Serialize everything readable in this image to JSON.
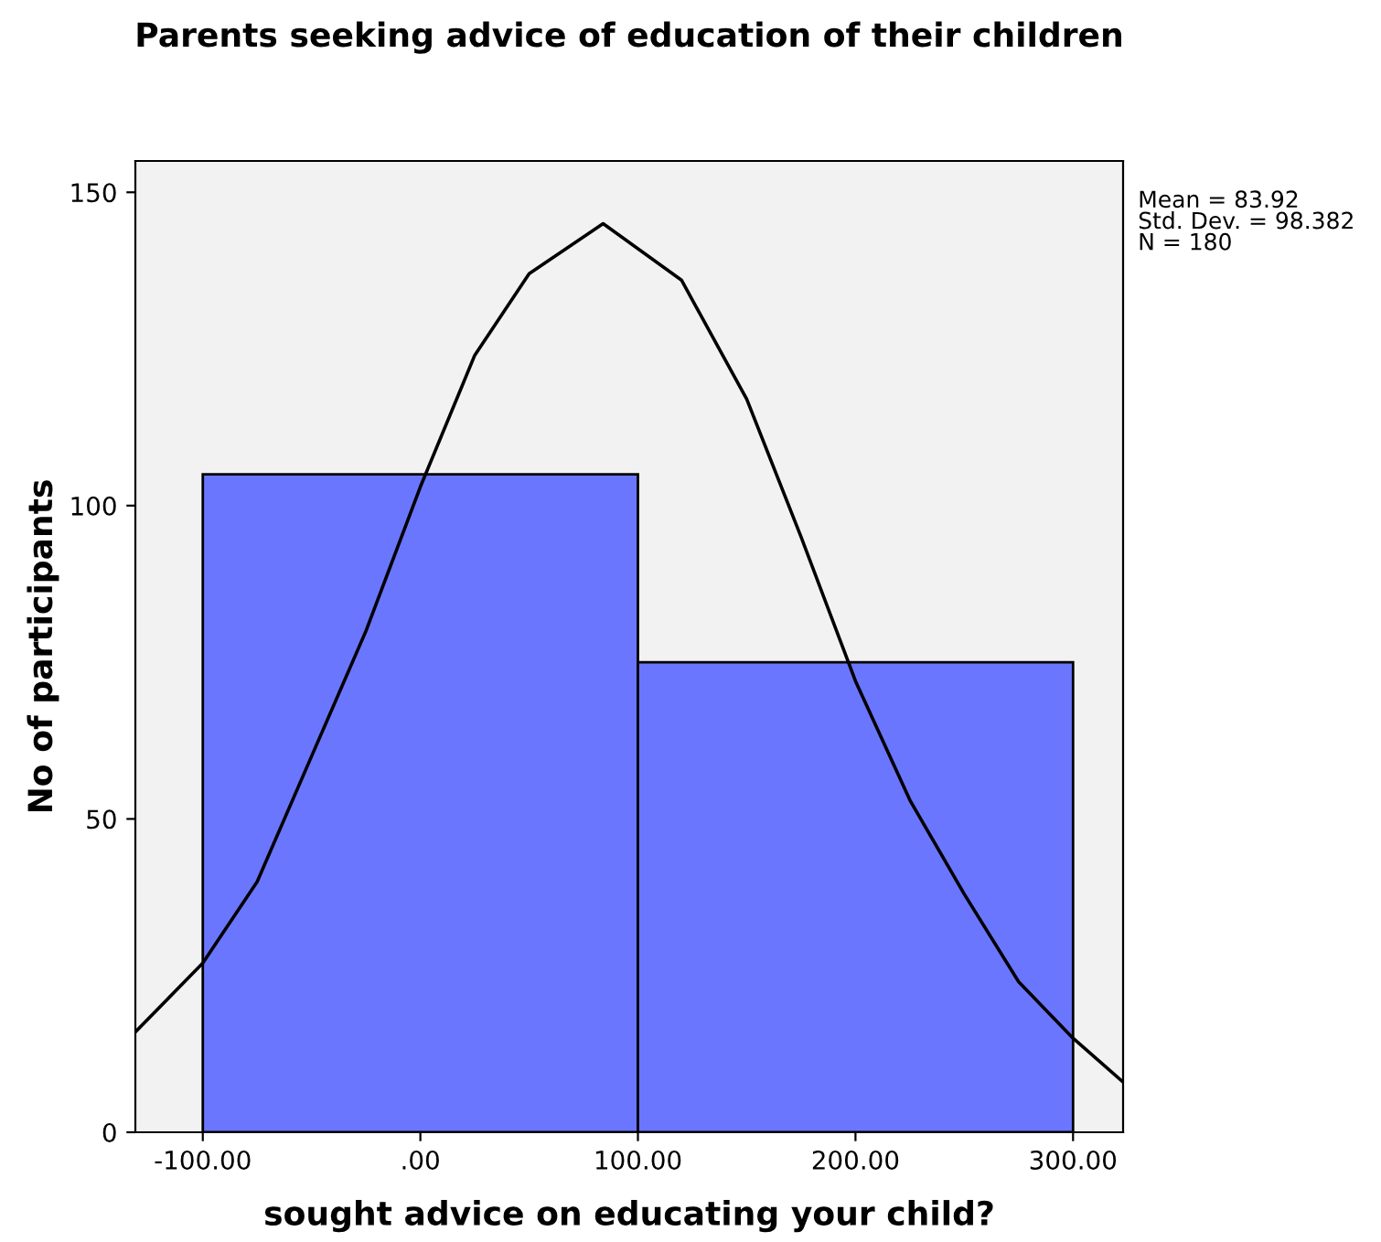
{
  "chart_data": {
    "type": "histogram",
    "title": "Parents seeking advice of education of their children",
    "xlabel": "sought advice on educating your child?",
    "ylabel": "No of participants",
    "bins": [
      -100,
      100,
      300
    ],
    "values": [
      105,
      75
    ],
    "color": "#6b76ff",
    "series": [
      {
        "type": "line",
        "color": "#000000",
        "x": [
          -131,
          -100,
          -75,
          -50,
          -25,
          0,
          25,
          50,
          84,
          120,
          150,
          175,
          200,
          225,
          250,
          275,
          300,
          323
        ],
        "values": [
          16,
          27,
          40,
          60,
          80,
          103,
          124,
          137,
          145,
          136,
          117,
          95,
          72,
          53,
          38,
          24,
          15,
          8
        ]
      }
    ],
    "xlim": [
      -131,
      323
    ],
    "ylim": [
      0,
      155
    ],
    "xticks": [
      {
        "value": -100,
        "label": "-100.00"
      },
      {
        "value": 0,
        "label": ".00"
      },
      {
        "value": 100,
        "label": "100.00"
      },
      {
        "value": 200,
        "label": "200.00"
      },
      {
        "value": 300,
        "label": "300.00"
      }
    ],
    "yticks": [
      0,
      50,
      100,
      150
    ],
    "grid": false,
    "annotations": [
      "Mean = 83.92\nStd. Dev. = 98.382\nN = 180"
    ]
  }
}
